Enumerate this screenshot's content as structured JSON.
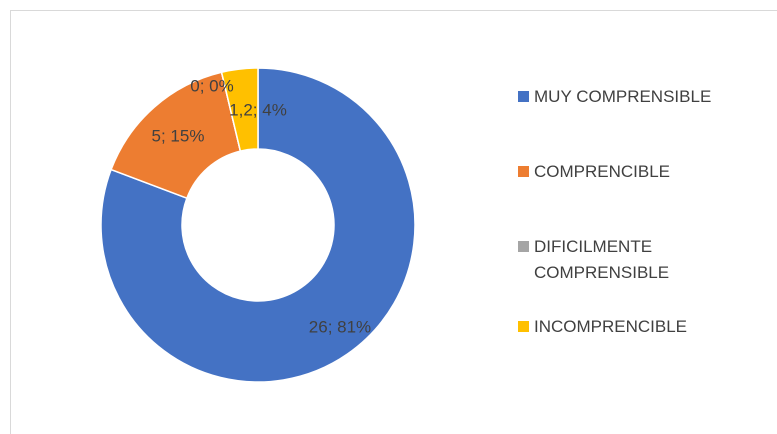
{
  "chart_data": {
    "type": "donut",
    "categories": [
      "MUY COMPRENSIBLE",
      "COMPRENCIBLE",
      "DIFICILMENTE COMPRENSIBLE",
      "INCOMPRENCIBLE"
    ],
    "values": [
      26,
      5,
      0,
      1.2
    ],
    "value_labels": [
      "26; 81%",
      "5; 15%",
      "0; 0%",
      "1,2; 4%"
    ],
    "colors": [
      "#4472c4",
      "#ed7d31",
      "#a5a5a5",
      "#ffc000"
    ],
    "legend": "right"
  }
}
